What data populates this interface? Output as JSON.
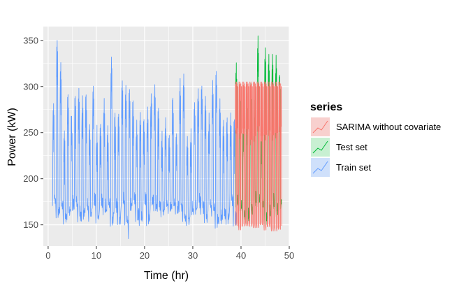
{
  "chart_data": {
    "type": "line",
    "xlabel": "Time (hr)",
    "ylabel": "Power (kW)",
    "xlim": [
      -1,
      50
    ],
    "ylim": [
      127,
      365
    ],
    "x_ticks": [
      0,
      10,
      20,
      30,
      40,
      50
    ],
    "y_ticks": [
      150,
      200,
      250,
      300,
      350
    ],
    "grid": true,
    "panel_background": "#ebebeb",
    "legend": {
      "title": "series",
      "placement": "right",
      "entries": [
        {
          "name": "SARIMA without covariate",
          "color": "#f8766d",
          "key_fill": "#f8d0ce"
        },
        {
          "name": "Test set",
          "color": "#00ba38",
          "key_fill": "#c8f0d2"
        },
        {
          "name": "Train set",
          "color": "#619cff",
          "key_fill": "#cfe0fb"
        }
      ]
    },
    "series": [
      {
        "name": "Train set",
        "color": "#619cff",
        "x_range": [
          0.9,
          38.8
        ],
        "cycle_hours": 0.75,
        "low_kw": [
          145,
          172
        ],
        "high_kw": [
          245,
          318
        ],
        "peaks": [
          {
            "x": 1.9,
            "y": 350
          },
          {
            "x": 13.0,
            "y": 332
          },
          {
            "x": 3.0,
            "y": 326
          }
        ],
        "min_point": {
          "x": 16.5,
          "y": 135
        }
      },
      {
        "name": "Test set",
        "color": "#00ba38",
        "x_range": [
          38.8,
          48.2
        ],
        "cycle_hours": 0.75,
        "low_kw": [
          148,
          170
        ],
        "high_kw": [
          250,
          335
        ],
        "peaks": [
          {
            "x": 43.6,
            "y": 355
          },
          {
            "x": 44.9,
            "y": 342
          },
          {
            "x": 46.3,
            "y": 335
          }
        ]
      },
      {
        "name": "SARIMA without covariate",
        "color": "#f8766d",
        "x_range": [
          38.8,
          48.2
        ],
        "cycle_hours": 0.75,
        "low_kw": [
          140,
          150
        ],
        "high_kw": [
          300,
          305
        ],
        "band_kw": [
          242,
          258
        ]
      }
    ]
  }
}
